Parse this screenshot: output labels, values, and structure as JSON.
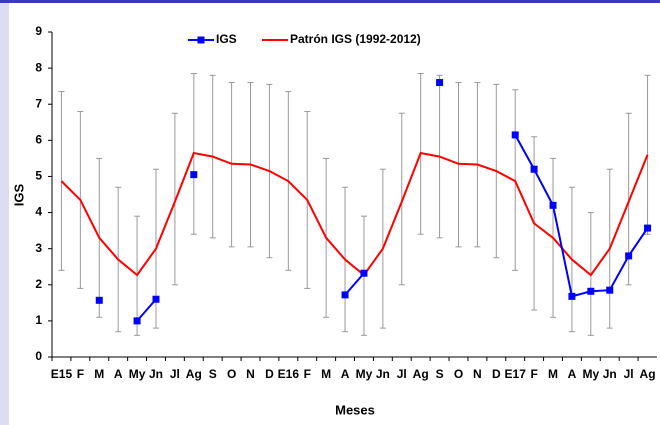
{
  "chart_data": {
    "type": "line",
    "x_label": "Meses",
    "y_label": "IGS",
    "categories": [
      "E15",
      "F",
      "M",
      "A",
      "My",
      "Jn",
      "Jl",
      "Ag",
      "S",
      "O",
      "N",
      "D",
      "E16",
      "F",
      "M",
      "A",
      "My",
      "Jn",
      "Jl",
      "Ag",
      "S",
      "O",
      "N",
      "D",
      "E17",
      "F",
      "M",
      "A",
      "My",
      "Jn",
      "Jl",
      "Ag"
    ],
    "ylim": [
      0,
      9
    ],
    "yticks": [
      0,
      1,
      2,
      3,
      4,
      5,
      6,
      7,
      8,
      9
    ],
    "grid": false,
    "legend": "top",
    "series": [
      {
        "name": "IGS",
        "color": "#0000ff",
        "marker": "square",
        "values": [
          null,
          null,
          1.57,
          null,
          1.0,
          1.6,
          null,
          5.05,
          null,
          null,
          null,
          null,
          null,
          null,
          null,
          1.72,
          2.32,
          null,
          null,
          null,
          7.6,
          null,
          null,
          null,
          6.15,
          5.2,
          4.2,
          1.68,
          1.82,
          1.85,
          2.8,
          3.57
        ]
      },
      {
        "name": "Patrón IGS (1992-2012)",
        "color": "#ff0000",
        "range_color": "#999999",
        "values": [
          4.87,
          4.35,
          3.3,
          2.7,
          2.27,
          3.0,
          4.3,
          5.65,
          5.55,
          5.35,
          5.33,
          5.15,
          4.87,
          4.35,
          3.3,
          2.7,
          2.27,
          3.0,
          4.3,
          5.65,
          5.55,
          5.35,
          5.33,
          5.15,
          4.87,
          3.7,
          3.3,
          2.7,
          2.27,
          3.0,
          4.3,
          5.6
        ],
        "range_low": [
          2.4,
          1.9,
          1.1,
          0.7,
          0.6,
          0.8,
          2.0,
          3.4,
          3.3,
          3.05,
          3.05,
          2.75,
          2.4,
          1.9,
          1.1,
          0.7,
          0.6,
          0.8,
          2.0,
          3.4,
          3.3,
          3.05,
          3.05,
          2.75,
          2.4,
          1.3,
          1.1,
          0.7,
          0.6,
          0.8,
          2.0,
          3.4
        ],
        "range_high": [
          7.35,
          6.8,
          5.5,
          4.7,
          3.9,
          5.2,
          6.75,
          7.85,
          7.8,
          7.6,
          7.6,
          7.55,
          7.35,
          6.8,
          5.5,
          4.7,
          3.9,
          5.2,
          6.75,
          7.85,
          7.8,
          7.6,
          7.6,
          7.55,
          7.4,
          6.1,
          5.5,
          4.7,
          4.0,
          5.2,
          6.75,
          7.8
        ]
      }
    ]
  }
}
